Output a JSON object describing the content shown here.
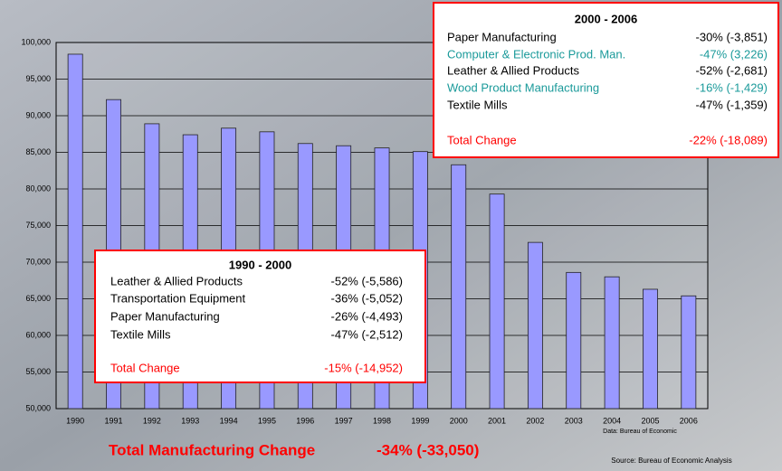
{
  "chart_data": {
    "type": "bar",
    "categories": [
      "1990",
      "1991",
      "1992",
      "1993",
      "1994",
      "1995",
      "1996",
      "1997",
      "1998",
      "1999",
      "2000",
      "2001",
      "2002",
      "2003",
      "2004",
      "2005",
      "2006"
    ],
    "values": [
      98400,
      92200,
      88900,
      87400,
      88300,
      87800,
      86200,
      85900,
      85600,
      85100,
      83300,
      79300,
      72700,
      68600,
      68000,
      66300,
      65400
    ],
    "color": "#9999ff",
    "ylim": [
      50000,
      100000
    ],
    "yticks": [
      {
        "value": 50000,
        "label": "50,000"
      },
      {
        "value": 55000,
        "label": "55,000"
      },
      {
        "value": 60000,
        "label": "60,000"
      },
      {
        "value": 65000,
        "label": "65,000"
      },
      {
        "value": 70000,
        "label": "70,000"
      },
      {
        "value": 75000,
        "label": "75,000"
      },
      {
        "value": 80000,
        "label": "80,000"
      },
      {
        "value": 85000,
        "label": "85,000"
      },
      {
        "value": 90000,
        "label": "90,000"
      },
      {
        "value": 95000,
        "label": "95,000"
      },
      {
        "value": 100000,
        "label": "100,000"
      }
    ],
    "grid": true,
    "annotations": [
      {
        "title": "2000 - 2006",
        "rows": [
          {
            "label": "Paper Manufacturing",
            "value": "-30% (-3,851)",
            "color": "#000000"
          },
          {
            "label": "Computer & Electronic Prod. Man.",
            "value": "-47% (3,226)",
            "color": "#1a9a9a"
          },
          {
            "label": "Leather & Allied Products",
            "value": "-52% (-2,681)",
            "color": "#000000"
          },
          {
            "label": "Wood Product Manufacturing",
            "value": "-16% (-1,429)",
            "color": "#1a9a9a"
          },
          {
            "label": "Textile Mills",
            "value": "-47% (-1,359)",
            "color": "#000000"
          }
        ],
        "total": {
          "label": "Total Change",
          "value": "-22% (-18,089)",
          "color": "#ff0000"
        }
      },
      {
        "title": "1990 - 2000",
        "rows": [
          {
            "label": "Leather & Allied Products",
            "value": "-52% (-5,586)",
            "color": "#000000"
          },
          {
            "label": "Transportation Equipment",
            "value": "-36% (-5,052)",
            "color": "#000000"
          },
          {
            "label": "Paper Manufacturing",
            "value": "-26% (-4,493)",
            "color": "#000000"
          },
          {
            "label": "Textile Mills",
            "value": "-47% (-2,512)",
            "color": "#000000"
          }
        ],
        "total": {
          "label": "Total Change",
          "value": "-15% (-14,952)",
          "color": "#ff0000"
        }
      }
    ],
    "footer": {
      "label": "Total Manufacturing Change",
      "value": "-34% (-33,050)",
      "data_note": "Data: Bureau of Economic",
      "source": "Source: Bureau of Economic Analysis"
    }
  }
}
